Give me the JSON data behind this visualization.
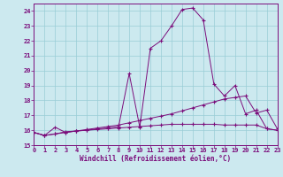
{
  "xlabel": "Windchill (Refroidissement éolien,°C)",
  "bg_color": "#cce9ef",
  "grid_color": "#99cdd6",
  "line_color": "#7b0d7b",
  "xlim": [
    0,
    23
  ],
  "ylim": [
    15,
    24.5
  ],
  "xticks": [
    0,
    1,
    2,
    3,
    4,
    5,
    6,
    7,
    8,
    9,
    10,
    11,
    12,
    13,
    14,
    15,
    16,
    17,
    18,
    19,
    20,
    21,
    22,
    23
  ],
  "yticks": [
    15,
    16,
    17,
    18,
    19,
    20,
    21,
    22,
    23,
    24
  ],
  "series1_x": [
    0,
    1,
    2,
    3,
    4,
    5,
    6,
    7,
    8,
    9,
    10,
    11,
    12,
    13,
    14,
    15,
    16,
    17,
    18,
    19,
    20,
    21,
    22,
    23
  ],
  "series1_y": [
    15.85,
    15.65,
    15.75,
    15.9,
    15.95,
    16.0,
    16.05,
    16.1,
    16.15,
    16.2,
    16.25,
    16.3,
    16.35,
    16.4,
    16.4,
    16.4,
    16.4,
    16.4,
    16.35,
    16.35,
    16.35,
    16.35,
    16.1,
    16.0
  ],
  "series2_x": [
    0,
    1,
    2,
    3,
    4,
    5,
    6,
    7,
    8,
    9,
    10,
    11,
    12,
    13,
    14,
    15,
    16,
    17,
    18,
    19,
    20,
    21,
    22,
    23
  ],
  "series2_y": [
    15.85,
    15.65,
    15.75,
    15.85,
    15.95,
    16.05,
    16.15,
    16.25,
    16.35,
    16.5,
    16.65,
    16.8,
    16.95,
    17.1,
    17.3,
    17.5,
    17.7,
    17.9,
    18.1,
    18.2,
    18.3,
    17.15,
    17.35,
    16.1
  ],
  "series3_x": [
    0,
    1,
    2,
    3,
    4,
    5,
    6,
    7,
    8,
    9,
    10,
    11,
    12,
    13,
    14,
    15,
    16,
    17,
    18,
    19,
    20,
    21,
    22,
    23
  ],
  "series3_y": [
    15.85,
    15.65,
    16.2,
    15.85,
    15.95,
    16.0,
    16.1,
    16.15,
    16.25,
    19.8,
    16.2,
    21.5,
    22.0,
    23.0,
    24.1,
    24.2,
    23.4,
    19.1,
    18.3,
    19.0,
    17.1,
    17.35,
    16.1,
    16.0
  ]
}
